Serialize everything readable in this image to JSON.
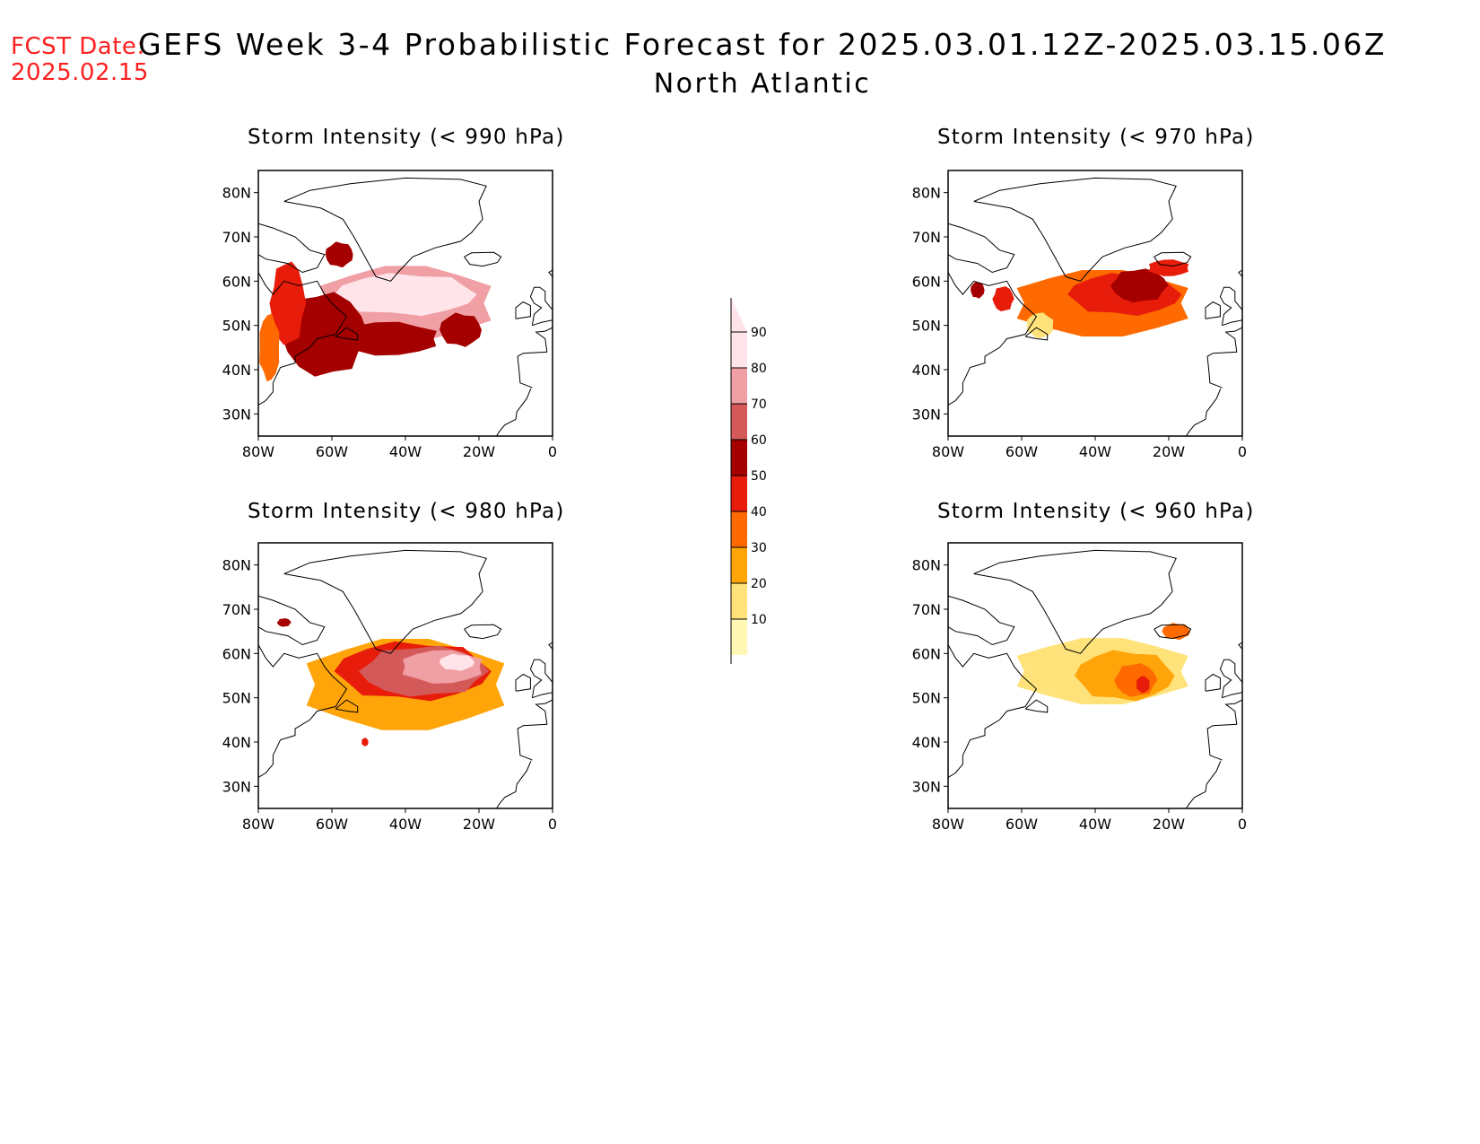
{
  "header": {
    "fcst_label": "FCST Date:",
    "fcst_date": "2025.02.15",
    "title": "GEFS Week 3-4 Probabilistic Forecast for 2025.03.01.12Z-2025.03.15.06Z",
    "subtitle": "North Atlantic"
  },
  "axes": {
    "lat_labels": [
      "80N",
      "70N",
      "60N",
      "50N",
      "40N",
      "30N"
    ],
    "lat_values": [
      80,
      70,
      60,
      50,
      40,
      30
    ],
    "lon_labels": [
      "80W",
      "60W",
      "40W",
      "20W",
      "0"
    ],
    "lon_values": [
      -80,
      -60,
      -40,
      -20,
      0
    ],
    "lat_range": [
      25,
      85
    ],
    "lon_range": [
      -80,
      0
    ]
  },
  "colorbar": {
    "levels": [
      10,
      20,
      30,
      40,
      50,
      60,
      70,
      80,
      90
    ],
    "labels": [
      "10",
      "20",
      "30",
      "40",
      "50",
      "60",
      "70",
      "80",
      "90"
    ],
    "colors": [
      "#fff8b4",
      "#ffe27a",
      "#ffa50a",
      "#ff6a00",
      "#e81c0a",
      "#a50000",
      "#d45a5a",
      "#f0a0a5",
      "#ffe4ea"
    ]
  },
  "panels": [
    {
      "title": "Storm Intensity (< 990 hPa)",
      "blobs": [
        {
          "lon": -40,
          "lat": 55,
          "rlon": 26,
          "rlat": 9,
          "level": 7
        },
        {
          "lon": -40,
          "lat": 57,
          "rlon": 20,
          "rlat": 5,
          "level": 8
        },
        {
          "lon": -62,
          "lat": 48,
          "rlon": 12,
          "rlat": 10,
          "level": 5
        },
        {
          "lon": -45,
          "lat": 47,
          "rlon": 15,
          "rlat": 4,
          "level": 5
        },
        {
          "lon": -25,
          "lat": 49,
          "rlon": 6,
          "rlat": 4,
          "level": 5
        },
        {
          "lon": -72,
          "lat": 55,
          "rlon": 5,
          "rlat": 10,
          "level": 4
        },
        {
          "lon": -77,
          "lat": 45,
          "rlon": 3,
          "rlat": 8,
          "level": 3
        },
        {
          "lon": -58,
          "lat": 66,
          "rlon": 4,
          "rlat": 3,
          "level": 5
        }
      ]
    },
    {
      "title": "Storm Intensity (< 970 hPa)",
      "blobs": [
        {
          "lon": -38,
          "lat": 55,
          "rlon": 26,
          "rlat": 8,
          "level": 3
        },
        {
          "lon": -32,
          "lat": 57,
          "rlon": 16,
          "rlat": 5,
          "level": 4
        },
        {
          "lon": -28,
          "lat": 59,
          "rlon": 8,
          "rlat": 4,
          "level": 5
        },
        {
          "lon": -20,
          "lat": 63,
          "rlon": 6,
          "rlat": 2,
          "level": 4
        },
        {
          "lon": -72,
          "lat": 58,
          "rlon": 2,
          "rlat": 2,
          "level": 5
        },
        {
          "lon": -65,
          "lat": 56,
          "rlon": 3,
          "rlat": 3,
          "level": 4
        },
        {
          "lon": -55,
          "lat": 50,
          "rlon": 4,
          "rlat": 3,
          "level": 1
        }
      ]
    },
    {
      "title": "Storm Intensity (< 980 hPa)",
      "blobs": [
        {
          "lon": -40,
          "lat": 53,
          "rlon": 30,
          "rlat": 11,
          "level": 2
        },
        {
          "lon": -38,
          "lat": 56,
          "rlon": 22,
          "rlat": 7,
          "level": 4
        },
        {
          "lon": -35,
          "lat": 56,
          "rlon": 18,
          "rlat": 6,
          "level": 6
        },
        {
          "lon": -30,
          "lat": 57,
          "rlon": 12,
          "rlat": 4,
          "level": 7
        },
        {
          "lon": -26,
          "lat": 58,
          "rlon": 5,
          "rlat": 2,
          "level": 8
        },
        {
          "lon": -73,
          "lat": 67,
          "rlon": 2,
          "rlat": 1,
          "level": 5
        },
        {
          "lon": -51,
          "lat": 40,
          "rlon": 1,
          "rlat": 1,
          "level": 4
        }
      ]
    },
    {
      "title": "Storm Intensity (< 960 hPa)",
      "blobs": [
        {
          "lon": -38,
          "lat": 56,
          "rlon": 26,
          "rlat": 8,
          "level": 1
        },
        {
          "lon": -32,
          "lat": 55,
          "rlon": 14,
          "rlat": 6,
          "level": 2
        },
        {
          "lon": -29,
          "lat": 54,
          "rlon": 6,
          "rlat": 4,
          "level": 3
        },
        {
          "lon": -27,
          "lat": 53,
          "rlon": 2,
          "rlat": 2,
          "level": 4
        },
        {
          "lon": -18,
          "lat": 65,
          "rlon": 4,
          "rlat": 2,
          "level": 3
        }
      ]
    }
  ]
}
